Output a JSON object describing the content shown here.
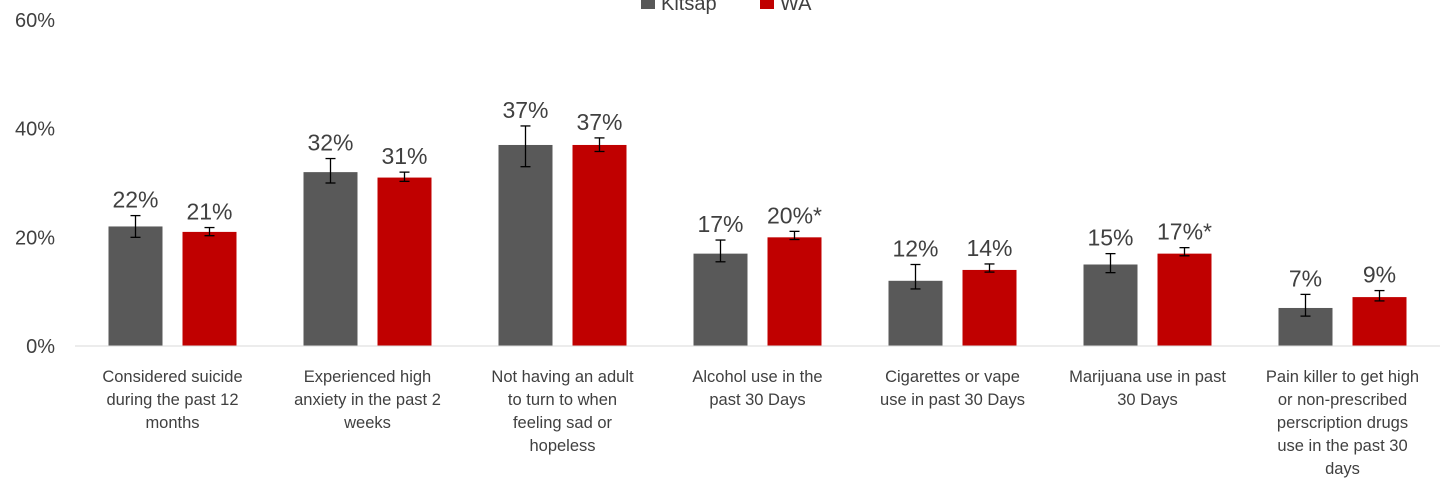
{
  "chart_data": {
    "type": "bar",
    "categories": [
      "Considered suicide during the past 12 months",
      "Experienced high anxiety in the past 2 weeks",
      "Not having an adult to turn to when feeling sad or hopeless",
      "Alcohol use in the past 30 Days",
      "Cigarettes or vape use in past 30 Days",
      "Marijuana use in past 30 Days",
      "Pain killer to get high or non-prescribed perscription drugs use in the past 30 days"
    ],
    "category_lines": [
      [
        "Considered suicide",
        "during the past 12",
        "months"
      ],
      [
        "Experienced high",
        "anxiety in the past 2",
        "weeks"
      ],
      [
        "Not having an adult",
        "to turn to when",
        "feeling sad or",
        "hopeless"
      ],
      [
        "Alcohol use in the",
        "past 30 Days"
      ],
      [
        "Cigarettes or vape",
        "use in past 30 Days"
      ],
      [
        "Marijuana use in past",
        "30 Days"
      ],
      [
        "Pain killer to get high",
        "or non-prescribed",
        "perscription drugs",
        "use in the past 30",
        "days"
      ]
    ],
    "series": [
      {
        "name": "Kitsap",
        "color": "#595959",
        "values": [
          22,
          32,
          37,
          17,
          12,
          15,
          7
        ],
        "error_low": [
          20,
          30,
          33,
          15.5,
          10.5,
          13.5,
          5.5
        ],
        "error_high": [
          24,
          34.5,
          40.5,
          19.5,
          15,
          17,
          9.5
        ],
        "labels": [
          "22%",
          "32%",
          "37%",
          "17%",
          "12%",
          "15%",
          "7%"
        ]
      },
      {
        "name": "WA",
        "color": "#c00000",
        "values": [
          21,
          31,
          37,
          20,
          14,
          17,
          9
        ],
        "error_low": [
          20.3,
          30.3,
          35.8,
          19.6,
          13.6,
          16.6,
          8.3
        ],
        "error_high": [
          21.8,
          32,
          38.3,
          21.1,
          15.1,
          18.1,
          10.2
        ],
        "labels": [
          "21%",
          "31%",
          "37%",
          "20%*",
          "14%",
          "17%*",
          "9%"
        ]
      }
    ],
    "ylim": [
      0,
      60
    ],
    "y_ticks": [
      {
        "value": 0,
        "label": "0%"
      },
      {
        "value": 20,
        "label": "20%"
      },
      {
        "value": 40,
        "label": "40%"
      },
      {
        "value": 60,
        "label": "60%"
      }
    ],
    "grid": false,
    "legend": "top-center"
  }
}
